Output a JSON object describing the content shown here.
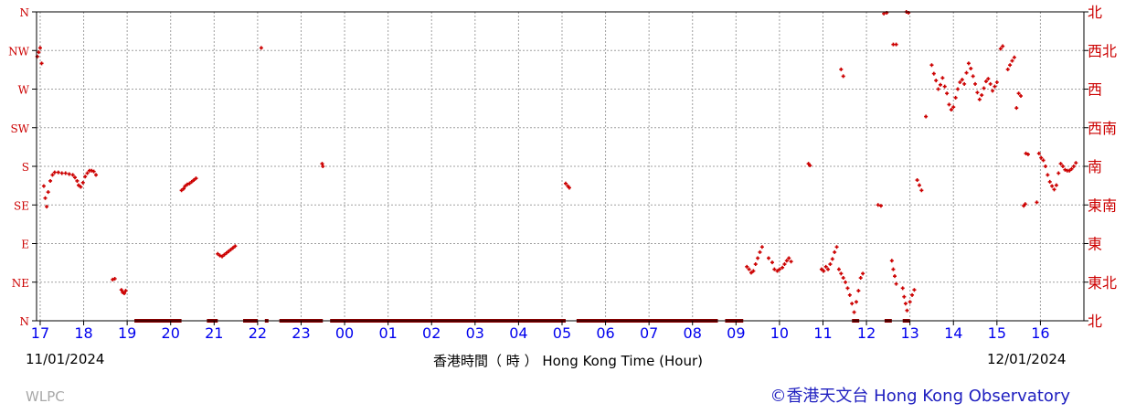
{
  "chart_data": {
    "type": "scatter",
    "title": "",
    "xlabel": "香港時間（ 時 ） Hong Kong Time (Hour)",
    "x_ticks": [
      "17",
      "18",
      "19",
      "20",
      "21",
      "22",
      "23",
      "00",
      "01",
      "02",
      "03",
      "04",
      "05",
      "06",
      "07",
      "08",
      "09",
      "10",
      "11",
      "12",
      "13",
      "14",
      "15",
      "16"
    ],
    "y_ticks_left": [
      "N",
      "NE",
      "E",
      "SE",
      "S",
      "SW",
      "W",
      "NW",
      "N"
    ],
    "y_ticks_right": [
      "北",
      "東北",
      "東",
      "東南",
      "南",
      "西南",
      "西",
      "西北",
      "北"
    ],
    "xlim": [
      "11/01/2024 16:55",
      "12/01/2024 17:00"
    ],
    "ylim": [
      0,
      360
    ],
    "grid": true,
    "colors": {
      "points": "#cc0000",
      "calm": "#8b0000",
      "grid": "#a0a0a0",
      "axis": "#000000",
      "tick_text": "#0000ee",
      "left_text": "#cc0000"
    },
    "calm_periods": [
      [
        "11/01/2024 19:10",
        "11/01/2024 20:15"
      ],
      [
        "11/01/2024 20:50",
        "11/01/2024 21:05"
      ],
      [
        "11/01/2024 21:40",
        "11/01/2024 22:00"
      ],
      [
        "11/01/2024 22:10",
        "11/01/2024 22:15"
      ],
      [
        "11/01/2024 22:30",
        "11/01/2024 23:30"
      ],
      [
        "11/01/2024 23:40",
        "12/01/2024 05:05"
      ],
      [
        "12/01/2024 05:20",
        "12/01/2024 08:35"
      ],
      [
        "12/01/2024 08:45",
        "12/01/2024 09:10"
      ],
      [
        "12/01/2024 11:40",
        "12/01/2024 11:50"
      ],
      [
        "12/01/2024 12:25",
        "12/01/2024 12:35"
      ],
      [
        "12/01/2024 12:50",
        "12/01/2024 13:00"
      ]
    ],
    "series": [
      {
        "points": [
          [
            "11/01/2024 16:56",
            308
          ],
          [
            "11/01/2024 16:58",
            313
          ],
          [
            "11/01/2024 17:00",
            318
          ],
          [
            "11/01/2024 17:02",
            300
          ],
          [
            "11/01/2024 17:05",
            157
          ],
          [
            "11/01/2024 17:07",
            143
          ],
          [
            "11/01/2024 17:09",
            133
          ],
          [
            "11/01/2024 17:11",
            150
          ],
          [
            "11/01/2024 17:14",
            163
          ],
          [
            "11/01/2024 17:17",
            170
          ],
          [
            "11/01/2024 17:20",
            173
          ],
          [
            "11/01/2024 17:25",
            173
          ],
          [
            "11/01/2024 17:30",
            172
          ],
          [
            "11/01/2024 17:35",
            172
          ],
          [
            "11/01/2024 17:40",
            171
          ],
          [
            "11/01/2024 17:45",
            170
          ],
          [
            "11/01/2024 17:48",
            167
          ],
          [
            "11/01/2024 17:51",
            163
          ],
          [
            "11/01/2024 17:53",
            158
          ],
          [
            "11/01/2024 17:56",
            156
          ],
          [
            "11/01/2024 17:59",
            161
          ],
          [
            "11/01/2024 18:02",
            168
          ],
          [
            "11/01/2024 18:05",
            172
          ],
          [
            "11/01/2024 18:08",
            175
          ],
          [
            "11/01/2024 18:11",
            175
          ],
          [
            "11/01/2024 18:14",
            174
          ],
          [
            "11/01/2024 18:17",
            170
          ],
          [
            "11/01/2024 18:40",
            48
          ],
          [
            "11/01/2024 18:43",
            49
          ],
          [
            "11/01/2024 18:52",
            36
          ],
          [
            "11/01/2024 18:54",
            33
          ],
          [
            "11/01/2024 18:56",
            32
          ],
          [
            "11/01/2024 18:58",
            35
          ],
          [
            "11/01/2024 20:15",
            152
          ],
          [
            "11/01/2024 20:18",
            154
          ],
          [
            "11/01/2024 20:20",
            157
          ],
          [
            "11/01/2024 20:23",
            159
          ],
          [
            "11/01/2024 20:26",
            160
          ],
          [
            "11/01/2024 20:29",
            162
          ],
          [
            "11/01/2024 20:32",
            164
          ],
          [
            "11/01/2024 20:35",
            166
          ],
          [
            "11/01/2024 21:05",
            78
          ],
          [
            "11/01/2024 21:08",
            76
          ],
          [
            "11/01/2024 21:11",
            75
          ],
          [
            "11/01/2024 21:14",
            77
          ],
          [
            "11/01/2024 21:17",
            79
          ],
          [
            "11/01/2024 21:20",
            81
          ],
          [
            "11/01/2024 21:23",
            83
          ],
          [
            "11/01/2024 21:26",
            85
          ],
          [
            "11/01/2024 21:29",
            87
          ],
          [
            "11/01/2024 22:05",
            318
          ],
          [
            "11/01/2024 23:29",
            183
          ],
          [
            "11/01/2024 23:30",
            180
          ],
          [
            "12/01/2024 05:05",
            160
          ],
          [
            "12/01/2024 05:08",
            157
          ],
          [
            "12/01/2024 05:10",
            155
          ],
          [
            "12/01/2024 09:15",
            63
          ],
          [
            "12/01/2024 09:18",
            60
          ],
          [
            "12/01/2024 09:21",
            56
          ],
          [
            "12/01/2024 09:24",
            58
          ],
          [
            "12/01/2024 09:27",
            66
          ],
          [
            "12/01/2024 09:30",
            73
          ],
          [
            "12/01/2024 09:33",
            80
          ],
          [
            "12/01/2024 09:36",
            86
          ],
          [
            "12/01/2024 09:45",
            73
          ],
          [
            "12/01/2024 09:50",
            68
          ],
          [
            "12/01/2024 09:53",
            60
          ],
          [
            "12/01/2024 09:57",
            58
          ],
          [
            "12/01/2024 10:00",
            60
          ],
          [
            "12/01/2024 10:04",
            62
          ],
          [
            "12/01/2024 10:07",
            66
          ],
          [
            "12/01/2024 10:10",
            70
          ],
          [
            "12/01/2024 10:13",
            73
          ],
          [
            "12/01/2024 10:16",
            69
          ],
          [
            "12/01/2024 10:40",
            183
          ],
          [
            "12/01/2024 10:42",
            181
          ],
          [
            "12/01/2024 10:58",
            60
          ],
          [
            "12/01/2024 11:01",
            58
          ],
          [
            "12/01/2024 11:04",
            63
          ],
          [
            "12/01/2024 11:07",
            60
          ],
          [
            "12/01/2024 11:10",
            66
          ],
          [
            "12/01/2024 11:13",
            72
          ],
          [
            "12/01/2024 11:16",
            80
          ],
          [
            "12/01/2024 11:19",
            86
          ],
          [
            "12/01/2024 11:22",
            60
          ],
          [
            "12/01/2024 11:25",
            55
          ],
          [
            "12/01/2024 11:28",
            50
          ],
          [
            "12/01/2024 11:31",
            45
          ],
          [
            "12/01/2024 11:34",
            38
          ],
          [
            "12/01/2024 11:37",
            30
          ],
          [
            "12/01/2024 11:40",
            20
          ],
          [
            "12/01/2024 11:43",
            10
          ],
          [
            "12/01/2024 11:46",
            22
          ],
          [
            "12/01/2024 11:49",
            35
          ],
          [
            "12/01/2024 11:52",
            50
          ],
          [
            "12/01/2024 11:55",
            55
          ],
          [
            "12/01/2024 11:25",
            293
          ],
          [
            "12/01/2024 11:28",
            285
          ],
          [
            "12/01/2024 12:16",
            135
          ],
          [
            "12/01/2024 12:20",
            134
          ],
          [
            "12/01/2024 12:24",
            358
          ],
          [
            "12/01/2024 12:28",
            359
          ],
          [
            "12/01/2024 12:35",
            70
          ],
          [
            "12/01/2024 12:37",
            60
          ],
          [
            "12/01/2024 12:39",
            52
          ],
          [
            "12/01/2024 12:41",
            43
          ],
          [
            "12/01/2024 12:37",
            322
          ],
          [
            "12/01/2024 12:41",
            322
          ],
          [
            "12/01/2024 12:55",
            360
          ],
          [
            "12/01/2024 12:58",
            359
          ],
          [
            "12/01/2024 12:50",
            38
          ],
          [
            "12/01/2024 12:52",
            28
          ],
          [
            "12/01/2024 12:54",
            20
          ],
          [
            "12/01/2024 12:56",
            12
          ],
          [
            "12/01/2024 13:00",
            22
          ],
          [
            "12/01/2024 13:03",
            30
          ],
          [
            "12/01/2024 13:06",
            36
          ],
          [
            "12/01/2024 13:10",
            164
          ],
          [
            "12/01/2024 13:13",
            158
          ],
          [
            "12/01/2024 13:16",
            152
          ],
          [
            "12/01/2024 13:22",
            238
          ],
          [
            "12/01/2024 13:30",
            298
          ],
          [
            "12/01/2024 13:33",
            288
          ],
          [
            "12/01/2024 13:36",
            280
          ],
          [
            "12/01/2024 13:39",
            270
          ],
          [
            "12/01/2024 13:42",
            275
          ],
          [
            "12/01/2024 13:45",
            283
          ],
          [
            "12/01/2024 13:48",
            273
          ],
          [
            "12/01/2024 13:51",
            265
          ],
          [
            "12/01/2024 13:54",
            252
          ],
          [
            "12/01/2024 13:57",
            246
          ],
          [
            "12/01/2024 14:00",
            249
          ],
          [
            "12/01/2024 14:03",
            260
          ],
          [
            "12/01/2024 14:06",
            270
          ],
          [
            "12/01/2024 14:09",
            278
          ],
          [
            "12/01/2024 14:12",
            281
          ],
          [
            "12/01/2024 14:15",
            276
          ],
          [
            "12/01/2024 14:18",
            289
          ],
          [
            "12/01/2024 14:21",
            300
          ],
          [
            "12/01/2024 14:24",
            294
          ],
          [
            "12/01/2024 14:27",
            285
          ],
          [
            "12/01/2024 14:30",
            276
          ],
          [
            "12/01/2024 14:33",
            266
          ],
          [
            "12/01/2024 14:36",
            258
          ],
          [
            "12/01/2024 14:39",
            263
          ],
          [
            "12/01/2024 14:42",
            271
          ],
          [
            "12/01/2024 14:45",
            279
          ],
          [
            "12/01/2024 14:48",
            282
          ],
          [
            "12/01/2024 14:51",
            276
          ],
          [
            "12/01/2024 14:54",
            268
          ],
          [
            "12/01/2024 14:57",
            273
          ],
          [
            "12/01/2024 15:00",
            278
          ],
          [
            "12/01/2024 15:05",
            317
          ],
          [
            "12/01/2024 15:08",
            320
          ],
          [
            "12/01/2024 15:15",
            293
          ],
          [
            "12/01/2024 15:18",
            298
          ],
          [
            "12/01/2024 15:21",
            303
          ],
          [
            "12/01/2024 15:24",
            307
          ],
          [
            "12/01/2024 15:30",
            265
          ],
          [
            "12/01/2024 15:33",
            262
          ],
          [
            "12/01/2024 15:27",
            248
          ],
          [
            "12/01/2024 15:40",
            195
          ],
          [
            "12/01/2024 15:43",
            194
          ],
          [
            "12/01/2024 15:37",
            134
          ],
          [
            "12/01/2024 15:39",
            136
          ],
          [
            "12/01/2024 15:55",
            138
          ],
          [
            "12/01/2024 15:58",
            195
          ],
          [
            "12/01/2024 16:01",
            190
          ],
          [
            "12/01/2024 16:04",
            187
          ],
          [
            "12/01/2024 16:07",
            180
          ],
          [
            "12/01/2024 16:10",
            170
          ],
          [
            "12/01/2024 16:13",
            162
          ],
          [
            "12/01/2024 16:16",
            157
          ],
          [
            "12/01/2024 16:19",
            153
          ],
          [
            "12/01/2024 16:22",
            158
          ],
          [
            "12/01/2024 16:25",
            172
          ],
          [
            "12/01/2024 16:28",
            183
          ],
          [
            "12/01/2024 16:31",
            180
          ],
          [
            "12/01/2024 16:34",
            176
          ],
          [
            "12/01/2024 16:37",
            175
          ],
          [
            "12/01/2024 16:40",
            175
          ],
          [
            "12/01/2024 16:43",
            177
          ],
          [
            "12/01/2024 16:46",
            180
          ],
          [
            "12/01/2024 16:49",
            184
          ]
        ]
      }
    ]
  },
  "dates": {
    "start": "11/01/2024",
    "end": "12/01/2024"
  },
  "station": "WLPC",
  "credit": "©香港天文台 Hong Kong Observatory"
}
